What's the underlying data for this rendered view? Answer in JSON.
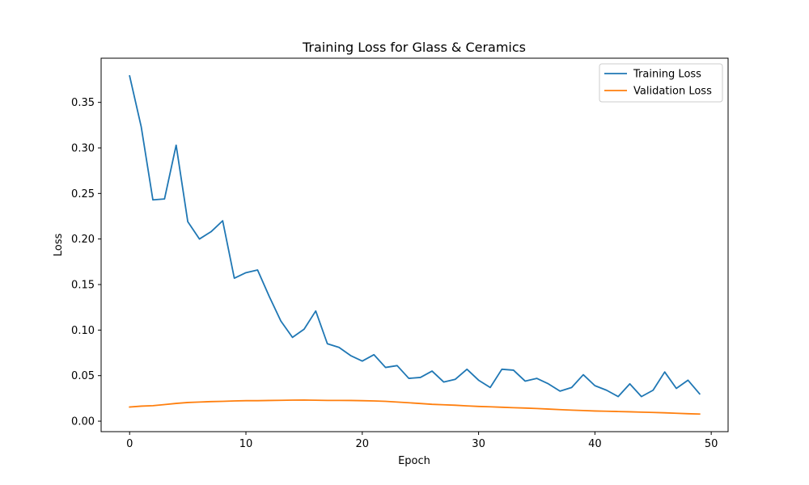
{
  "chart_data": {
    "type": "line",
    "title": "Training Loss for Glass & Ceramics",
    "xlabel": "Epoch",
    "ylabel": "Loss",
    "xlim": [
      -2.45,
      51.45
    ],
    "ylim": [
      -0.0115,
      0.3985
    ],
    "xticks": [
      0,
      10,
      20,
      30,
      40,
      50
    ],
    "yticks": [
      0.0,
      0.05,
      0.1,
      0.15,
      0.2,
      0.25,
      0.3,
      0.35
    ],
    "ytick_labels": [
      "0.00",
      "0.05",
      "0.10",
      "0.15",
      "0.20",
      "0.25",
      "0.30",
      "0.35"
    ],
    "grid": false,
    "legend_position": "top-right",
    "x": [
      0,
      1,
      2,
      3,
      4,
      5,
      6,
      7,
      8,
      9,
      10,
      11,
      12,
      13,
      14,
      15,
      16,
      17,
      18,
      19,
      20,
      21,
      22,
      23,
      24,
      25,
      26,
      27,
      28,
      29,
      30,
      31,
      32,
      33,
      34,
      35,
      36,
      37,
      38,
      39,
      40,
      41,
      42,
      43,
      44,
      45,
      46,
      47,
      48,
      49
    ],
    "series": [
      {
        "name": "Training Loss",
        "color": "#1f77b4",
        "values": [
          0.379,
          0.323,
          0.243,
          0.244,
          0.303,
          0.219,
          0.2,
          0.208,
          0.22,
          0.157,
          0.163,
          0.166,
          0.137,
          0.11,
          0.092,
          0.101,
          0.121,
          0.085,
          0.081,
          0.072,
          0.066,
          0.073,
          0.059,
          0.061,
          0.047,
          0.048,
          0.055,
          0.043,
          0.046,
          0.057,
          0.045,
          0.037,
          0.057,
          0.056,
          0.044,
          0.047,
          0.041,
          0.033,
          0.037,
          0.051,
          0.039,
          0.034,
          0.027,
          0.041,
          0.027,
          0.034,
          0.054,
          0.036,
          0.045,
          0.03
        ]
      },
      {
        "name": "Validation Loss",
        "color": "#ff7f0e",
        "values": [
          0.0155,
          0.0165,
          0.017,
          0.0182,
          0.0195,
          0.0205,
          0.021,
          0.0215,
          0.0218,
          0.0222,
          0.0225,
          0.0225,
          0.0227,
          0.0229,
          0.0231,
          0.0232,
          0.023,
          0.0228,
          0.0228,
          0.0227,
          0.0225,
          0.0222,
          0.0218,
          0.021,
          0.0202,
          0.0194,
          0.0185,
          0.018,
          0.0175,
          0.0168,
          0.0162,
          0.0158,
          0.0153,
          0.0148,
          0.0144,
          0.0139,
          0.0133,
          0.0127,
          0.0121,
          0.0117,
          0.0112,
          0.0109,
          0.0106,
          0.0103,
          0.0099,
          0.0096,
          0.0092,
          0.0087,
          0.0082,
          0.0078
        ]
      }
    ]
  }
}
